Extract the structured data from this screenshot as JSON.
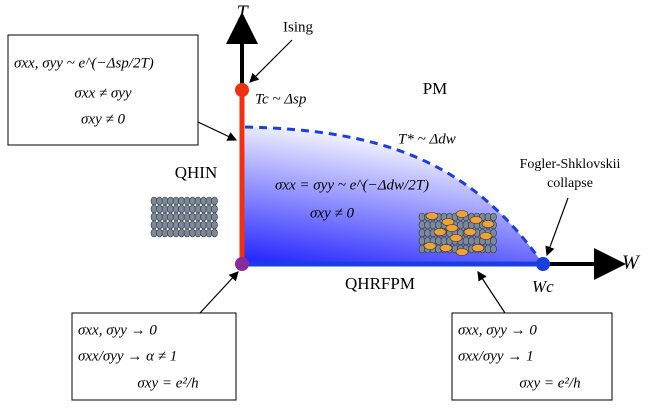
{
  "axes": {
    "y_label": "T",
    "x_label": "W"
  },
  "labels": {
    "ising": "Ising",
    "tc": "Tc ~ Δsp",
    "pm": "PM",
    "tstar": "T* ~ Δdw",
    "fs": [
      "Fogler-Shklovskii",
      "collapse"
    ],
    "qhin": "QHIN",
    "qhrfpm": "QHRFPM",
    "wc": "Wc",
    "inside": [
      "σxx = σyy ~ e^(−Δdw/2T)",
      "σxy ≠ 0"
    ]
  },
  "boxes": {
    "top_left": [
      "σxx, σyy ~ e^(−Δsp/2T)",
      "σxx ≠ σyy",
      "σxy ≠ 0"
    ],
    "bottom_left": [
      "σxx, σyy → 0",
      "σxx/σyy → α ≠ 1",
      "σxy = e²/h"
    ],
    "bottom_right": [
      "σxx, σyy → 0",
      "σxx/σyy → 1",
      "σxy = e²/h"
    ]
  }
}
